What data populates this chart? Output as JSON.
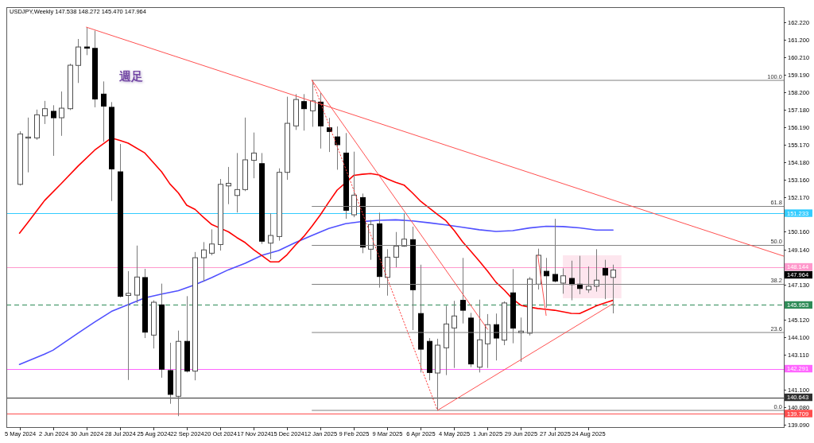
{
  "chart_data": {
    "type": "candlestick",
    "title": "USDJPY,Weekly  147.538 148.272 145.470 147.964",
    "x": [
      "2024-05-05",
      "2024-05-12",
      "2024-05-19",
      "2024-05-26",
      "2024-06-02",
      "2024-06-09",
      "2024-06-16",
      "2024-06-23",
      "2024-06-30",
      "2024-07-07",
      "2024-07-14",
      "2024-07-21",
      "2024-07-28",
      "2024-08-04",
      "2024-08-11",
      "2024-08-18",
      "2024-08-25",
      "2024-09-01",
      "2024-09-08",
      "2024-09-15",
      "2024-09-22",
      "2024-09-29",
      "2024-10-06",
      "2024-10-13",
      "2024-10-20",
      "2024-10-27",
      "2024-11-03",
      "2024-11-10",
      "2024-11-17",
      "2024-11-24",
      "2024-12-01",
      "2024-12-08",
      "2024-12-15",
      "2024-12-22",
      "2024-12-29",
      "2025-01-05",
      "2025-01-12",
      "2025-01-19",
      "2025-01-26",
      "2025-02-02",
      "2025-02-09",
      "2025-02-16",
      "2025-02-23",
      "2025-03-02",
      "2025-03-09",
      "2025-03-16",
      "2025-03-23",
      "2025-03-30",
      "2025-04-06",
      "2025-04-13",
      "2025-04-20",
      "2025-04-27",
      "2025-05-04",
      "2025-05-11",
      "2025-05-18",
      "2025-05-25",
      "2025-06-01",
      "2025-06-08",
      "2025-06-15",
      "2025-06-22",
      "2025-06-29",
      "2025-07-06",
      "2025-07-13",
      "2025-07-20",
      "2025-07-27",
      "2025-08-03",
      "2025-08-10",
      "2025-08-17",
      "2025-08-24",
      "2025-08-31",
      "2025-09-07",
      "2025-09-14"
    ],
    "ohlc": [
      [
        152.89,
        155.94,
        152.82,
        155.79
      ],
      [
        155.55,
        156.73,
        153.58,
        155.61
      ],
      [
        155.56,
        157.19,
        155.45,
        156.89
      ],
      [
        156.83,
        157.69,
        156.36,
        157.24
      ],
      [
        157.09,
        157.44,
        154.53,
        156.72
      ],
      [
        156.72,
        158.23,
        155.68,
        157.27
      ],
      [
        157.24,
        159.83,
        157.16,
        159.74
      ],
      [
        159.73,
        161.25,
        158.72,
        160.79
      ],
      [
        160.79,
        161.93,
        160.32,
        160.72
      ],
      [
        160.71,
        161.73,
        157.32,
        157.8
      ],
      [
        158.08,
        158.81,
        155.34,
        157.39
      ],
      [
        157.32,
        157.62,
        151.93,
        153.78
      ],
      [
        153.61,
        155.21,
        146.39,
        146.45
      ],
      [
        146.5,
        147.9,
        141.64,
        146.62
      ],
      [
        146.52,
        149.37,
        146.07,
        147.56
      ],
      [
        147.53,
        148.03,
        144.05,
        144.39
      ],
      [
        144.22,
        146.22,
        143.45,
        146.11
      ],
      [
        145.96,
        147.18,
        141.77,
        142.26
      ],
      [
        142.18,
        143.78,
        140.27,
        140.81
      ],
      [
        140.7,
        144.48,
        139.56,
        143.86
      ],
      [
        143.86,
        146.46,
        142.07,
        142.15
      ],
      [
        142.15,
        149.0,
        141.62,
        148.67
      ],
      [
        148.67,
        149.57,
        147.3,
        149.12
      ],
      [
        148.93,
        150.3,
        148.81,
        149.46
      ],
      [
        149.43,
        153.2,
        149.08,
        152.89
      ],
      [
        152.8,
        153.89,
        151.75,
        152.95
      ],
      [
        152.25,
        154.69,
        151.27,
        152.59
      ],
      [
        152.59,
        156.73,
        152.5,
        154.3
      ],
      [
        154.27,
        155.87,
        153.24,
        154.69
      ],
      [
        154.08,
        154.69,
        149.46,
        149.62
      ],
      [
        149.51,
        151.22,
        148.58,
        149.95
      ],
      [
        149.89,
        153.81,
        149.65,
        153.58
      ],
      [
        153.58,
        157.93,
        153.15,
        156.4
      ],
      [
        156.25,
        158.08,
        156.02,
        157.77
      ],
      [
        157.65,
        158.08,
        155.98,
        157.24
      ],
      [
        157.12,
        158.87,
        156.2,
        157.69
      ],
      [
        157.62,
        158.15,
        154.95,
        156.25
      ],
      [
        156.14,
        156.71,
        154.75,
        155.93
      ],
      [
        155.62,
        156.22,
        153.73,
        155.17
      ],
      [
        154.69,
        155.84,
        150.91,
        151.4
      ],
      [
        151.14,
        154.77,
        151.0,
        152.27
      ],
      [
        152.13,
        152.36,
        148.93,
        149.28
      ],
      [
        149.16,
        150.84,
        148.55,
        150.58
      ],
      [
        150.62,
        151.26,
        146.95,
        147.59
      ],
      [
        147.54,
        149.16,
        146.49,
        148.7
      ],
      [
        148.7,
        150.15,
        148.12,
        149.34
      ],
      [
        149.34,
        151.22,
        149.3,
        149.74
      ],
      [
        149.71,
        150.46,
        144.51,
        146.83
      ],
      [
        145.46,
        148.27,
        142.07,
        143.41
      ],
      [
        143.86,
        144.05,
        141.62,
        142.07
      ],
      [
        142.04,
        144.01,
        139.89,
        143.64
      ],
      [
        143.49,
        145.91,
        141.92,
        144.86
      ],
      [
        144.63,
        146.19,
        142.33,
        145.32
      ],
      [
        146.22,
        148.66,
        144.89,
        145.65
      ],
      [
        145.2,
        145.5,
        142.38,
        142.56
      ],
      [
        142.38,
        146.26,
        142.07,
        143.95
      ],
      [
        143.72,
        145.43,
        142.33,
        144.82
      ],
      [
        144.82,
        145.46,
        142.76,
        144.05
      ],
      [
        143.93,
        146.16,
        143.64,
        146.07
      ],
      [
        146.65,
        148.02,
        143.75,
        144.62
      ],
      [
        144.35,
        145.23,
        142.68,
        144.45
      ],
      [
        144.33,
        147.56,
        144.2,
        147.44
      ],
      [
        147.15,
        149.19,
        146.84,
        148.81
      ],
      [
        147.89,
        148.66,
        145.8,
        147.63
      ],
      [
        147.71,
        150.91,
        147.25,
        147.33
      ],
      [
        147.21,
        148.06,
        146.6,
        147.63
      ],
      [
        147.48,
        148.5,
        146.22,
        147.13
      ],
      [
        147.15,
        148.78,
        146.57,
        146.9
      ],
      [
        146.83,
        148.17,
        146.65,
        147.03
      ],
      [
        147.03,
        149.16,
        146.72,
        147.38
      ],
      [
        148.06,
        148.55,
        146.29,
        147.67
      ],
      [
        147.538,
        148.272,
        145.47,
        147.964
      ]
    ],
    "series": [
      {
        "type": "line",
        "color": "#fde6ee",
        "x": [
          "2025-08-03",
          "2025-09-21"
        ],
        "values": [
          null,
          null
        ],
        "lower": [
          146.34,
          146.34
        ],
        "upper": [
          148.81,
          148.81
        ]
      },
      {
        "type": "line",
        "name": "100.0",
        "color": "#808080",
        "x": [
          "2025-01-05",
          "2026-02-04"
        ],
        "values": [
          158.87,
          158.87
        ]
      },
      {
        "type": "line",
        "name": "61.8",
        "color": "#808080",
        "x": [
          "2025-01-05",
          "2026-02-04"
        ],
        "values": [
          151.62,
          151.62
        ]
      },
      {
        "type": "line",
        "name": "50.0",
        "color": "#808080",
        "x": [
          "2025-01-05",
          "2026-02-04"
        ],
        "values": [
          149.38,
          149.38
        ]
      },
      {
        "type": "line",
        "name": "38.2",
        "color": "#808080",
        "x": [
          "2025-01-05",
          "2026-02-04"
        ],
        "values": [
          147.14,
          147.14
        ]
      },
      {
        "type": "line",
        "name": "23.6",
        "color": "#808080",
        "x": [
          "2025-01-05",
          "2026-02-04"
        ],
        "values": [
          144.37,
          144.37
        ]
      },
      {
        "type": "line",
        "name": "0.0",
        "color": "#808080",
        "x": [
          "2025-01-05",
          "2026-02-04"
        ],
        "values": [
          139.89,
          139.89
        ]
      },
      {
        "type": "line",
        "color": "#ff4040",
        "line_style": "dotted",
        "x": [
          "2025-01-05",
          "2025-04-20"
        ],
        "values": [
          158.87,
          139.89
        ]
      },
      {
        "type": "line",
        "color": "#5050ff",
        "x": [
          "2024-05-05",
          "2024-05-26",
          "2024-06-02",
          "2024-06-23",
          "2024-07-07",
          "2024-07-21",
          "2024-08-04",
          "2024-08-18",
          "2024-09-01",
          "2024-09-15",
          "2024-09-29",
          "2024-10-13",
          "2024-10-27",
          "2024-11-10",
          "2024-11-24",
          "2024-12-08",
          "2024-12-22",
          "2025-01-05",
          "2025-01-19",
          "2025-02-02",
          "2025-02-16",
          "2025-03-02",
          "2025-03-16",
          "2025-03-30",
          "2025-04-13",
          "2025-04-27",
          "2025-05-11",
          "2025-05-25",
          "2025-06-08",
          "2025-06-22",
          "2025-07-06",
          "2025-07-20",
          "2025-08-03",
          "2025-08-17",
          "2025-08-31",
          "2025-09-14"
        ],
        "values": [
          142.53,
          143.13,
          143.35,
          144.33,
          144.97,
          145.58,
          145.97,
          146.36,
          146.58,
          146.77,
          147.12,
          147.53,
          147.98,
          148.35,
          148.81,
          149.08,
          149.54,
          149.95,
          150.35,
          150.63,
          150.75,
          150.82,
          150.85,
          150.79,
          150.68,
          150.56,
          150.42,
          150.28,
          150.18,
          150.23,
          150.38,
          150.48,
          150.46,
          150.39,
          150.26,
          150.26
        ]
      },
      {
        "type": "line",
        "color": "#ff0000",
        "x": [
          "2024-05-05",
          "2024-05-12",
          "2024-05-26",
          "2024-06-09",
          "2024-06-23",
          "2024-07-07",
          "2024-07-21",
          "2024-07-28",
          "2024-08-04",
          "2024-08-18",
          "2024-09-01",
          "2024-09-08",
          "2024-09-15",
          "2024-09-22",
          "2024-09-29",
          "2024-10-06",
          "2024-10-13",
          "2024-10-20",
          "2024-10-27",
          "2024-11-03",
          "2024-11-10",
          "2024-11-17",
          "2024-11-24",
          "2024-12-01",
          "2024-12-08",
          "2024-12-15",
          "2024-12-22",
          "2024-12-29",
          "2025-01-05",
          "2025-01-12",
          "2025-01-19",
          "2025-01-26",
          "2025-02-02",
          "2025-02-09",
          "2025-02-16",
          "2025-02-23",
          "2025-03-02",
          "2025-03-09",
          "2025-03-16",
          "2025-03-23",
          "2025-03-30",
          "2025-04-06",
          "2025-04-13",
          "2025-04-20",
          "2025-04-27",
          "2025-05-04",
          "2025-05-11",
          "2025-05-18",
          "2025-05-25",
          "2025-06-01",
          "2025-06-08",
          "2025-06-15",
          "2025-06-22",
          "2025-06-29",
          "2025-07-06",
          "2025-07-13",
          "2025-07-20",
          "2025-07-27",
          "2025-08-03",
          "2025-08-10",
          "2025-08-17",
          "2025-08-24",
          "2025-08-31",
          "2025-09-07",
          "2025-09-14"
        ],
        "values": [
          150.08,
          150.7,
          151.96,
          152.94,
          153.94,
          154.86,
          155.56,
          155.42,
          155.26,
          154.69,
          153.61,
          152.91,
          152.4,
          151.69,
          151.45,
          151.0,
          150.58,
          150.37,
          150.16,
          149.83,
          149.54,
          149.14,
          148.79,
          148.44,
          148.43,
          148.84,
          149.39,
          149.89,
          150.49,
          151.14,
          151.87,
          152.56,
          152.98,
          153.41,
          153.47,
          153.51,
          153.43,
          153.2,
          153.01,
          152.85,
          152.4,
          151.91,
          151.54,
          151.16,
          150.8,
          150.24,
          149.59,
          149.04,
          148.48,
          147.89,
          147.26,
          146.81,
          146.29,
          145.93,
          145.83,
          145.75,
          145.7,
          145.65,
          145.56,
          145.47,
          145.46,
          145.68,
          145.9,
          146.07,
          146.22
        ]
      },
      {
        "type": "line",
        "color": "#ff5050",
        "x": [
          "2024-06-30",
          "2026-02-04"
        ],
        "values": [
          161.93,
          148.76
        ]
      },
      {
        "type": "line",
        "color": "#ff5050",
        "x": [
          "2025-01-05",
          "2025-06-01"
        ],
        "values": [
          158.87,
          144.55
        ]
      },
      {
        "type": "line",
        "color": "#ff5050",
        "x": [
          "2025-04-20",
          "2025-09-14"
        ],
        "values": [
          139.89,
          146.03
        ]
      },
      {
        "type": "line",
        "color": "#ff5050",
        "x": [
          "2025-07-13",
          "2025-07-20"
        ],
        "values": [
          148.81,
          145.35
        ]
      }
    ],
    "xlim": [
      "2024-04-24",
      "2026-02-04"
    ],
    "ylim": [
      138.93,
      163.08
    ],
    "xticks": [
      {
        "value": "2024-05-05",
        "label": "5 May 2024"
      },
      {
        "value": "2024-06-02",
        "label": "2 Jun 2024"
      },
      {
        "value": "2024-06-30",
        "label": "30 Jun 2024"
      },
      {
        "value": "2024-07-28",
        "label": "28 Jul 2024"
      },
      {
        "value": "2024-08-25",
        "label": "25 Aug 2024"
      },
      {
        "value": "2024-09-22",
        "label": "22 Sep 2024"
      },
      {
        "value": "2024-10-20",
        "label": "20 Oct 2024"
      },
      {
        "value": "2024-11-17",
        "label": "17 Nov 2024"
      },
      {
        "value": "2024-12-15",
        "label": "15 Dec 2024"
      },
      {
        "value": "2025-01-12",
        "label": "12 Jan 2025"
      },
      {
        "value": "2025-02-09",
        "label": "9 Feb 2025"
      },
      {
        "value": "2025-03-09",
        "label": "9 Mar 2025"
      },
      {
        "value": "2025-04-06",
        "label": "6 Apr 2025"
      },
      {
        "value": "2025-05-04",
        "label": "4 May 2025"
      },
      {
        "value": "2025-06-01",
        "label": "1 Jun 2025"
      },
      {
        "value": "2025-06-29",
        "label": "29 Jun 2025"
      },
      {
        "value": "2025-07-27",
        "label": "27 Jul 2025"
      },
      {
        "value": "2025-08-24",
        "label": "24 Aug 2025"
      }
    ],
    "yticks": [
      {
        "value": 162.22,
        "label": "162.220"
      },
      {
        "value": 161.2,
        "label": "161.200"
      },
      {
        "value": 160.21,
        "label": "160.210"
      },
      {
        "value": 159.19,
        "label": "159.190"
      },
      {
        "value": 158.2,
        "label": "158.200"
      },
      {
        "value": 157.18,
        "label": "157.180"
      },
      {
        "value": 156.19,
        "label": "156.190"
      },
      {
        "value": 155.17,
        "label": "155.170"
      },
      {
        "value": 154.18,
        "label": "154.180"
      },
      {
        "value": 153.16,
        "label": "153.160"
      },
      {
        "value": 152.17,
        "label": "152.170"
      },
      {
        "value": 150.16,
        "label": "150.160"
      },
      {
        "value": 149.14,
        "label": "149.140"
      },
      {
        "value": 147.13,
        "label": "147.130"
      },
      {
        "value": 145.12,
        "label": "145.120"
      },
      {
        "value": 144.1,
        "label": "144.100"
      },
      {
        "value": 143.11,
        "label": "143.110"
      },
      {
        "value": 141.1,
        "label": "141.100"
      },
      {
        "value": 140.08,
        "label": "140.080"
      },
      {
        "value": 139.09,
        "label": "139.090"
      }
    ],
    "ref_lines": [
      {
        "axis": "y",
        "value": 151.233,
        "label": "151.233",
        "color": "#33ccff"
      },
      {
        "axis": "y",
        "value": 148.144,
        "label": "148.144",
        "color": "#ff99cc"
      },
      {
        "axis": "y",
        "value": 145.953,
        "label": "145.953",
        "color": "#2e8b57",
        "line_style": "dashed"
      },
      {
        "axis": "y",
        "value": 142.291,
        "label": "142.291",
        "color": "#ff66ff"
      },
      {
        "axis": "y",
        "value": 140.643,
        "label": "140.643",
        "color": "#303030"
      },
      {
        "axis": "y",
        "value": 139.709,
        "label": "139.709",
        "color": "#ff4d4d"
      }
    ],
    "annotations": [
      "週足",
      "147.964"
    ]
  }
}
